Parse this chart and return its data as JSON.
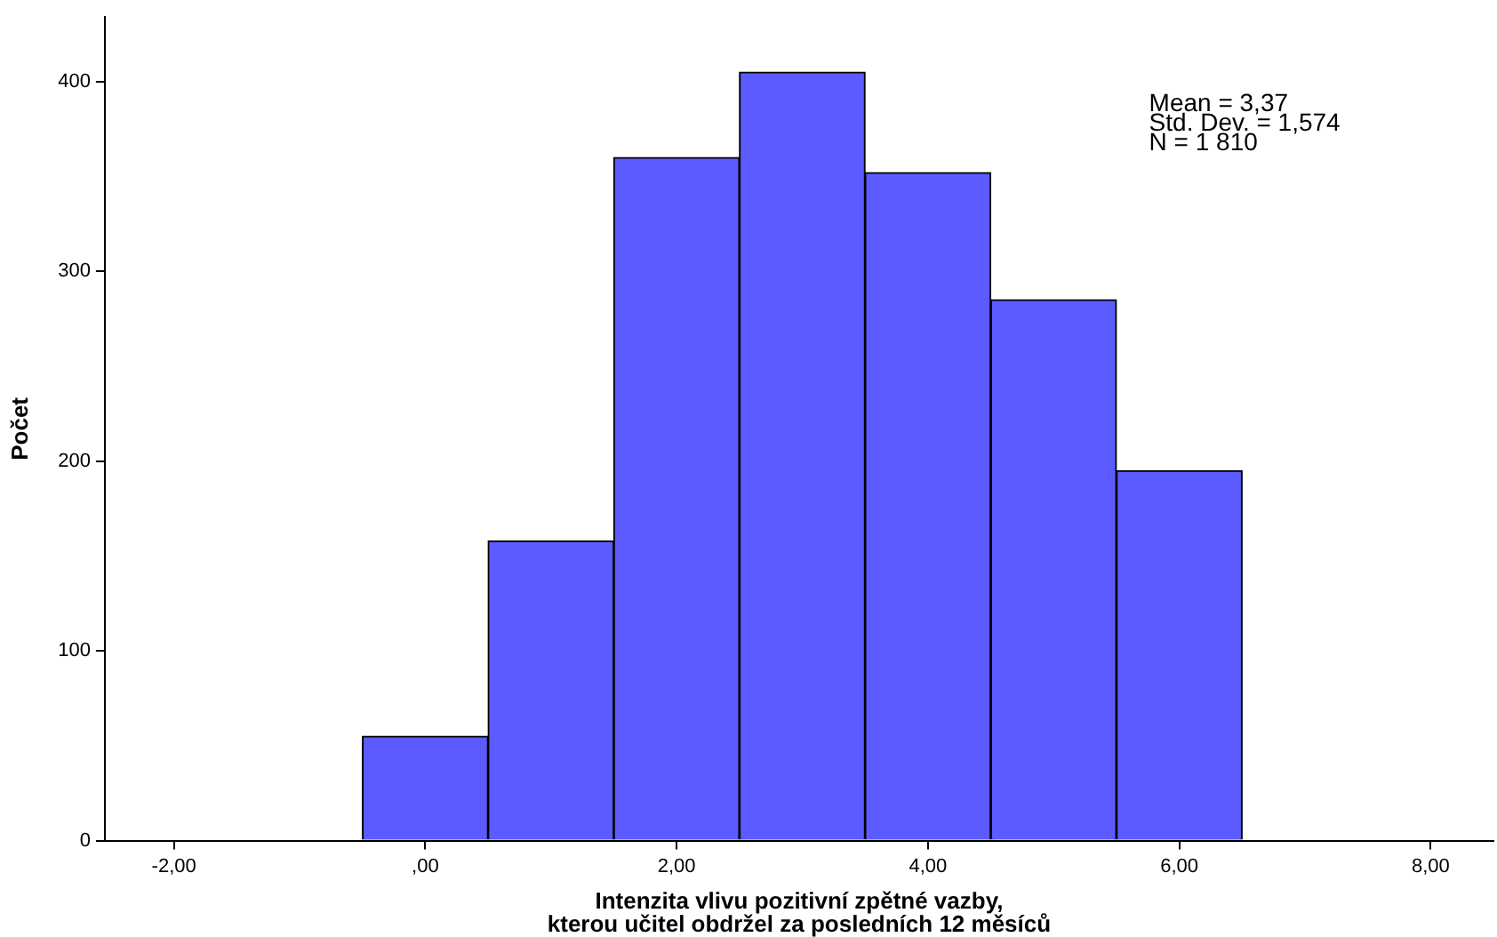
{
  "chart_data": {
    "type": "histogram",
    "xlabel": "Intenzita vlivu pozitivní zpětné vazby,\nkterou učitel obdržel za posledních 12 měsíců",
    "ylabel": "Počet",
    "bins": [
      -0.5,
      0.5,
      1.5,
      2.5,
      3.5,
      4.5,
      5.5,
      6.5
    ],
    "values": [
      55,
      158,
      360,
      405,
      352,
      285,
      195
    ],
    "color": "#5b5bff",
    "xlim": [
      -2.55,
      8.5
    ],
    "xticks": [
      {
        "value": -2,
        "label": "-2,00"
      },
      {
        "value": 0,
        "label": ",00"
      },
      {
        "value": 2,
        "label": "2,00"
      },
      {
        "value": 4,
        "label": "4,00"
      },
      {
        "value": 6,
        "label": "6,00"
      },
      {
        "value": 8,
        "label": "8,00"
      }
    ],
    "ylim": [
      0,
      434
    ],
    "yticks": [
      0,
      100,
      200,
      300,
      400
    ],
    "grid": false,
    "legend": false,
    "annotations": [
      "Mean = 3,37",
      "Std. Dev. = 1,574",
      "N = 1 810"
    ]
  }
}
